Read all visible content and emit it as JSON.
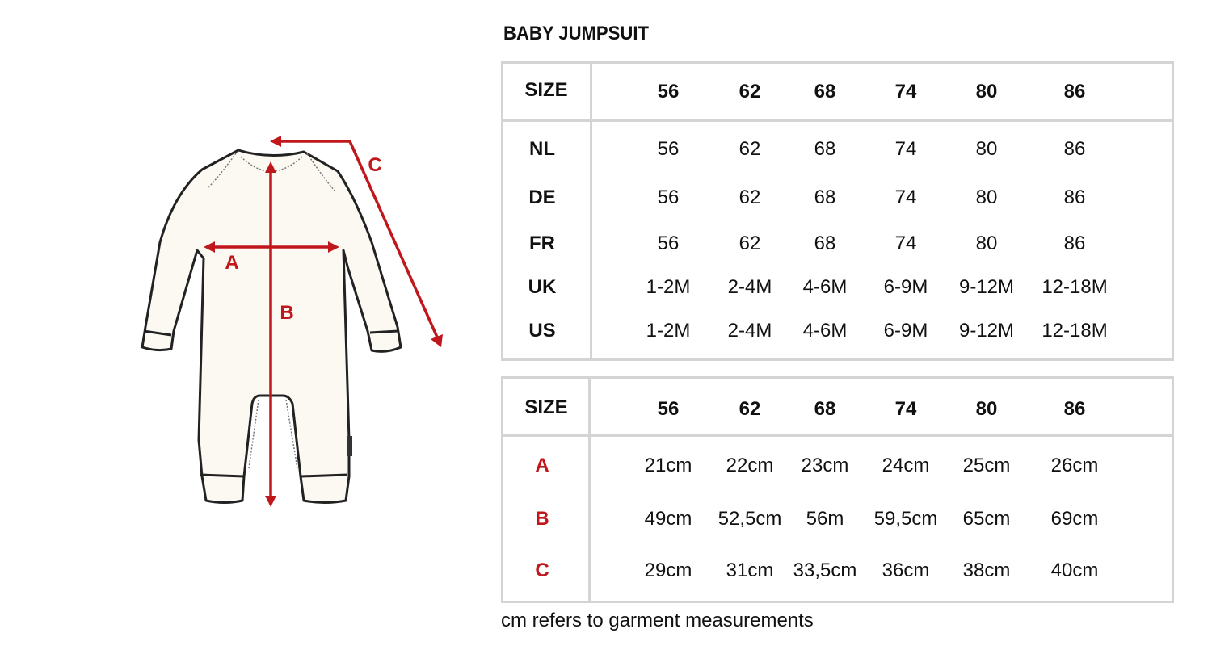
{
  "title": "BABY JUMPSUIT",
  "accent_color": "#c0171c",
  "illustration": {
    "labels": [
      "A",
      "B",
      "C"
    ]
  },
  "size_conversion": {
    "header": "SIZE",
    "sizes": [
      "56",
      "62",
      "68",
      "74",
      "80",
      "86"
    ],
    "rows": [
      {
        "label": "NL",
        "values": [
          "56",
          "62",
          "68",
          "74",
          "80",
          "86"
        ]
      },
      {
        "label": "DE",
        "values": [
          "56",
          "62",
          "68",
          "74",
          "80",
          "86"
        ]
      },
      {
        "label": "FR",
        "values": [
          "56",
          "62",
          "68",
          "74",
          "80",
          "86"
        ]
      },
      {
        "label": "UK",
        "values": [
          "1-2M",
          "2-4M",
          "4-6M",
          "6-9M",
          "9-12M",
          "12-18M"
        ]
      },
      {
        "label": "US",
        "values": [
          "1-2M",
          "2-4M",
          "4-6M",
          "6-9M",
          "9-12M",
          "12-18M"
        ]
      }
    ]
  },
  "measurements": {
    "header": "SIZE",
    "sizes": [
      "56",
      "62",
      "68",
      "74",
      "80",
      "86"
    ],
    "rows": [
      {
        "label": "A",
        "values": [
          "21cm",
          "22cm",
          "23cm",
          "24cm",
          "25cm",
          "26cm"
        ]
      },
      {
        "label": "B",
        "values": [
          "49cm",
          "52,5cm",
          "56m",
          "59,5cm",
          "65cm",
          "69cm"
        ]
      },
      {
        "label": "C",
        "values": [
          "29cm",
          "31cm",
          "33,5cm",
          "36cm",
          "38cm",
          "40cm"
        ]
      }
    ]
  },
  "note": "cm refers to garment measurements"
}
